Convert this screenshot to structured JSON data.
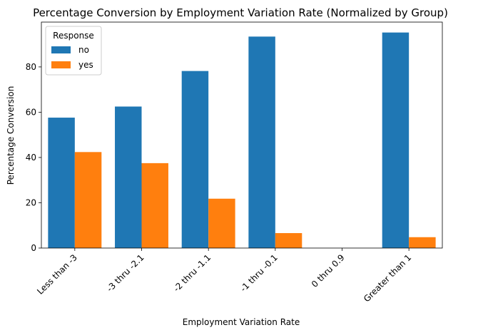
{
  "chart_data": {
    "type": "bar",
    "title": "Percentage Conversion by Employment Variation Rate (Normalized by Group)",
    "xlabel": "Employment Variation Rate",
    "ylabel": "Percentage Conversion",
    "categories": [
      "Less than -3",
      "-3 thru -2.1",
      "-2 thru -1.1",
      "-1 thru -0.1",
      "0 thru 0.9",
      "Greater than 1"
    ],
    "series": [
      {
        "name": "no",
        "color": "#1f77b4",
        "values": [
          57.6,
          62.5,
          78.2,
          93.4,
          null,
          95.2
        ]
      },
      {
        "name": "yes",
        "color": "#ff7f0e",
        "values": [
          42.4,
          37.5,
          21.8,
          6.6,
          null,
          4.8
        ]
      }
    ],
    "ylim": [
      0,
      99.8
    ],
    "yticks": [
      0,
      20,
      40,
      60,
      80
    ],
    "legend": {
      "title": "Response",
      "placement": "top-left"
    },
    "grid": false
  }
}
